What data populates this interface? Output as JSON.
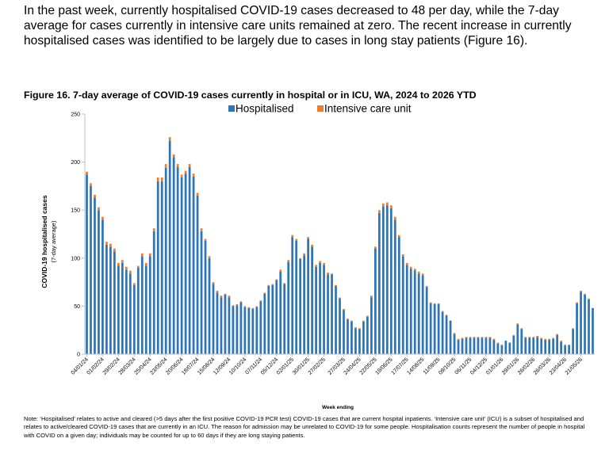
{
  "intro_text": "In the past week, currently hospitalised COVID-19 cases decreased to 48 per day, while the 7-day average for cases currently in intensive care units remained at zero. The recent increase in currently hospitalised cases was identified to be largely due to cases in long stay patients (Figure 16).",
  "figure_title": "Figure 16. 7-day average of COVID-19 cases currently in hospital or in ICU, WA, 2024 to 2026 YTD",
  "note_text": "Note: ‘Hospitalised’ relates to active and cleared (>5 days after the first positive COVID-19 PCR test) COVID-19 cases that are current hospital inpatients. ‘Intensive care unit’ (ICU) is a subset of hospitalised and relates to active/cleared COVID-19 cases that are currently in an ICU. The reason for admission may be unrelated to COVID-19 for some people. Hospitalisation counts represent the number of people in hospital with COVID on a given day; individuals may be counted for up to 60 days if they are long staying patients.",
  "colors": {
    "hospitalised": "#2e75b6",
    "icu": "#ed7d31",
    "axis": "#bfbfbf",
    "text": "#000000"
  },
  "chart_data": {
    "type": "bar",
    "stacked": true,
    "xlabel": "Week ending",
    "ylabel": "COVID-19 hospitalised cases",
    "ylabel_sub": "(7-day average)",
    "ylim": [
      0,
      250
    ],
    "yticks": [
      0,
      50,
      100,
      150,
      200,
      250
    ],
    "grid": false,
    "legend_position": "top",
    "tick_labels": [
      "04/01/24",
      "01/02/24",
      "29/02/24",
      "28/03/24",
      "25/04/24",
      "23/05/24",
      "20/06/24",
      "18/07/24",
      "15/08/24",
      "12/09/24",
      "10/10/24",
      "07/11/24",
      "05/12/24",
      "02/01/25",
      "30/01/25",
      "27/02/25",
      "27/03/25",
      "24/04/25",
      "22/05/25",
      "19/06/25",
      "17/07/25",
      "14/08/25",
      "11/09/25",
      "09/10/25",
      "06/11/25",
      "04/12/25",
      "01/01/26",
      "29/01/26",
      "26/02/26",
      "26/03/26",
      "23/04/26",
      "21/05/26"
    ],
    "series": [
      {
        "name": "Hospitalised",
        "values": [
          187,
          175,
          163,
          150,
          140,
          114,
          112,
          107,
          92,
          95,
          88,
          84,
          72,
          90,
          102,
          92,
          102,
          128,
          180,
          180,
          194,
          222,
          205,
          195,
          184,
          188,
          195,
          185,
          165,
          128,
          118,
          100,
          73,
          64,
          59,
          62,
          59,
          50,
          51,
          54,
          49,
          48,
          47,
          49,
          55,
          63,
          71,
          72,
          77,
          86,
          73,
          96,
          122,
          118,
          99,
          103,
          120,
          112,
          91,
          95,
          93,
          83,
          83,
          71,
          58,
          46,
          36,
          34,
          27,
          26,
          34,
          39,
          59,
          110,
          147,
          154,
          155,
          152,
          140,
          122,
          102,
          93,
          89,
          87,
          84,
          82,
          70,
          53,
          52,
          52,
          44,
          40,
          35,
          21,
          15,
          16,
          17,
          17,
          17,
          17,
          17,
          17,
          17,
          15,
          11,
          9,
          14,
          12,
          19,
          31,
          26,
          17,
          17,
          17,
          18,
          16,
          15,
          15,
          16,
          20,
          13,
          9,
          9,
          26,
          53,
          65,
          62,
          57,
          48
        ]
      },
      {
        "name": "Intensive care unit",
        "values": [
          3,
          3,
          3,
          3,
          3,
          3,
          3,
          3,
          3,
          3,
          3,
          3,
          2,
          2,
          3,
          3,
          3,
          3,
          4,
          4,
          4,
          4,
          3,
          3,
          3,
          3,
          3,
          3,
          3,
          3,
          2,
          2,
          2,
          2,
          2,
          1,
          2,
          1,
          1,
          1,
          1,
          1,
          1,
          1,
          1,
          1,
          1,
          1,
          1,
          2,
          1,
          2,
          2,
          2,
          1,
          2,
          2,
          2,
          2,
          2,
          2,
          2,
          1,
          1,
          1,
          1,
          1,
          1,
          1,
          1,
          1,
          1,
          2,
          2,
          3,
          3,
          3,
          3,
          3,
          2,
          2,
          2,
          2,
          2,
          2,
          2,
          1,
          1,
          1,
          1,
          1,
          1,
          0,
          1,
          1,
          1,
          1,
          1,
          1,
          1,
          1,
          1,
          1,
          1,
          1,
          1,
          0,
          0,
          1,
          1,
          1,
          1,
          1,
          1,
          1,
          1,
          1,
          1,
          1,
          1,
          1,
          1,
          1,
          1,
          1,
          1,
          1,
          1,
          0
        ]
      }
    ]
  }
}
